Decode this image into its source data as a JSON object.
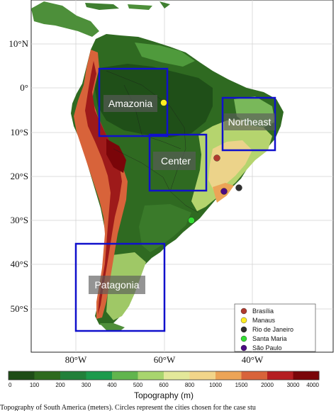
{
  "map": {
    "lon_labels": [
      "80°W",
      "60°W",
      "40°W"
    ],
    "lat_labels": [
      "10°N",
      "0°",
      "10°S",
      "20°S",
      "30°S",
      "40°S",
      "50°S"
    ],
    "regions": [
      {
        "id": "amazonia",
        "label": "Amazonia"
      },
      {
        "id": "northeast",
        "label": "Northeast"
      },
      {
        "id": "center",
        "label": "Center"
      },
      {
        "id": "patagonia",
        "label": "Patagonia"
      }
    ],
    "cities": [
      {
        "id": "brasilia",
        "label": "Brasília",
        "color": "#b03a2e"
      },
      {
        "id": "manaus",
        "label": "Manaus",
        "color": "#ffee22"
      },
      {
        "id": "rio",
        "label": "Rio de Janeiro",
        "color": "#2f2f2f"
      },
      {
        "id": "santa_maria",
        "label": "Santa Maria",
        "color": "#33dd33"
      },
      {
        "id": "sao_paulo",
        "label": "São Paulo",
        "color": "#4b0a82"
      }
    ],
    "box_color": "#1010cc"
  },
  "colorbar": {
    "title": "Topography (m)",
    "ticks": [
      "0",
      "100",
      "200",
      "300",
      "400",
      "500",
      "600",
      "800",
      "1000",
      "1500",
      "2000",
      "3000",
      "4000"
    ],
    "colors": [
      "#1e4d17",
      "#2e6a1e",
      "#22803a",
      "#1c9a4c",
      "#61b54e",
      "#a8d56e",
      "#e3e89a",
      "#f2d58a",
      "#eca457",
      "#d8633a",
      "#b51e22",
      "#7a0509"
    ]
  },
  "caption": "Topography of South America (meters). Circles represent the cities chosen for the case stu"
}
